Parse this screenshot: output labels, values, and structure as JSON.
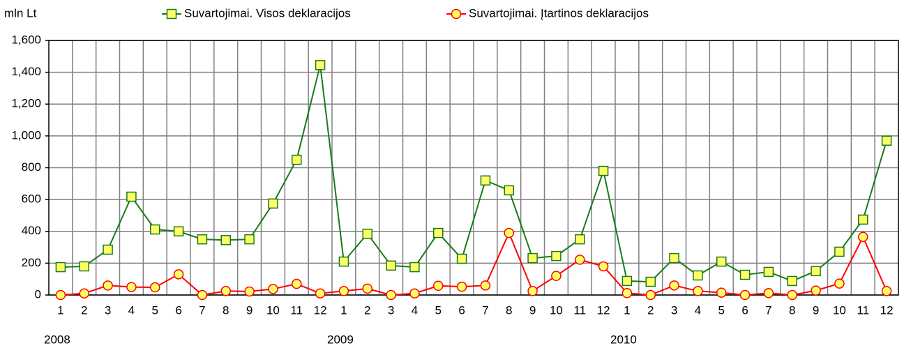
{
  "chart_data": {
    "type": "line",
    "y_label": "mln Lt",
    "categories": [
      "1",
      "2",
      "3",
      "4",
      "5",
      "6",
      "7",
      "8",
      "9",
      "10",
      "11",
      "12",
      "1",
      "2",
      "3",
      "4",
      "5",
      "6",
      "7",
      "8",
      "9",
      "10",
      "11",
      "12",
      "1",
      "2",
      "3",
      "4",
      "5",
      "6",
      "7",
      "8",
      "9",
      "10",
      "11",
      "12"
    ],
    "groups": [
      "2008",
      "2009",
      "2010"
    ],
    "series": [
      {
        "name": "Suvartojimai. Visos deklaracijos",
        "color": "#1a7a1a",
        "marker": "square",
        "marker_fill": "#ffff66",
        "values": [
          175,
          180,
          285,
          618,
          412,
          400,
          350,
          345,
          350,
          575,
          850,
          1445,
          210,
          385,
          185,
          175,
          390,
          228,
          720,
          658,
          232,
          245,
          350,
          780,
          88,
          83,
          232,
          123,
          210,
          127,
          145,
          88,
          150,
          272,
          474,
          970
        ]
      },
      {
        "name": "Suvartojimai. Įtartinos deklaracijos",
        "color": "#ff0000",
        "marker": "circle",
        "marker_fill": "#ffff66",
        "values": [
          0,
          10,
          60,
          50,
          48,
          130,
          0,
          25,
          22,
          38,
          70,
          10,
          25,
          40,
          0,
          10,
          58,
          52,
          60,
          390,
          25,
          120,
          222,
          180,
          12,
          0,
          60,
          25,
          15,
          0,
          12,
          0,
          28,
          72,
          365,
          25
        ]
      }
    ],
    "ylim": [
      0,
      1600
    ],
    "yticks": [
      0,
      200,
      400,
      600,
      800,
      {
        "value": 1000,
        "label": "1,000"
      },
      {
        "value": 1200,
        "label": "1,200"
      },
      {
        "value": 1400,
        "label": "1,400"
      },
      {
        "value": 1600,
        "label": "1,600"
      }
    ],
    "grid": true,
    "legend": "top"
  }
}
